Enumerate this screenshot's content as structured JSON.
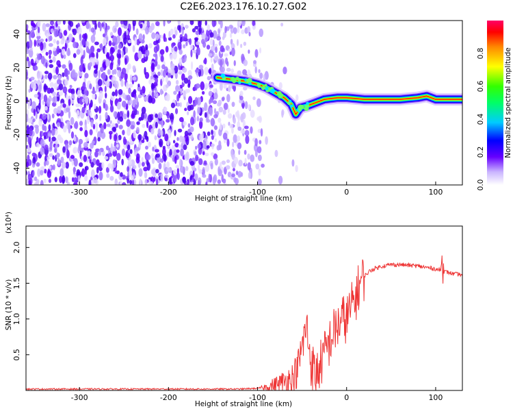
{
  "title": "C2E6.2023.176.10.27.G02",
  "chart_data": [
    {
      "type": "heatmap",
      "xlabel": "Height of straight line (km)",
      "ylabel": "Frequency (Hz)",
      "xlim": [
        -360,
        130
      ],
      "ylim": [
        -50,
        48
      ],
      "x_ticks": [
        -300,
        -200,
        -100,
        0,
        100
      ],
      "y_ticks": [
        -40,
        -20,
        0,
        20,
        40
      ],
      "colorbar": {
        "label": "Normalized spectral amplitude",
        "range": [
          0.0,
          1.0
        ],
        "ticks": [
          0.0,
          0.2,
          0.4,
          0.6,
          0.8
        ]
      },
      "track": {
        "x": [
          -145,
          -130,
          -115,
          -100,
          -90,
          -80,
          -70,
          -62,
          -57,
          -52,
          -45,
          -35,
          -25,
          -10,
          0,
          20,
          40,
          60,
          80,
          90,
          100,
          115,
          130
        ],
        "y": [
          14,
          13,
          12,
          10,
          8,
          5,
          2,
          -2,
          -8,
          -4,
          -3,
          -1,
          1,
          2,
          2,
          1,
          1,
          1,
          2,
          3,
          1,
          1,
          1
        ]
      },
      "background_noise_xlim": [
        -360,
        -95
      ]
    },
    {
      "type": "line",
      "xlabel": "Height of straight line (km)",
      "ylabel": "SNR (10 * v/v)",
      "y_scale_label": "(x10⁴)",
      "xlim": [
        -360,
        130
      ],
      "ylim": [
        0,
        2.3
      ],
      "x_ticks": [
        -300,
        -200,
        -100,
        0,
        100
      ],
      "y_ticks": [
        0.5,
        1.0,
        1.5,
        2.0
      ],
      "color": "#ee3333",
      "series": [
        {
          "x": [
            -360,
            -300,
            -250,
            -200,
            -150,
            -120,
            -100,
            -90,
            -80,
            -70,
            -60,
            -55,
            -50,
            -45,
            -40,
            -35,
            -30,
            -25,
            -20,
            -15,
            -10,
            -5,
            0,
            5,
            10,
            15,
            20,
            25,
            30,
            40,
            50,
            60,
            70,
            80,
            90,
            100,
            105,
            108,
            110,
            115,
            120,
            130
          ],
          "y": [
            0.02,
            0.02,
            0.02,
            0.02,
            0.02,
            0.02,
            0.03,
            0.05,
            0.08,
            0.12,
            0.18,
            0.3,
            0.6,
            0.9,
            0.4,
            0.2,
            0.35,
            0.5,
            0.65,
            0.8,
            0.9,
            1.0,
            1.0,
            1.15,
            1.3,
            1.5,
            1.6,
            1.66,
            1.7,
            1.74,
            1.76,
            1.76,
            1.75,
            1.74,
            1.72,
            1.7,
            1.68,
            1.65,
            1.66,
            1.65,
            1.63,
            1.62
          ]
        }
      ]
    }
  ]
}
